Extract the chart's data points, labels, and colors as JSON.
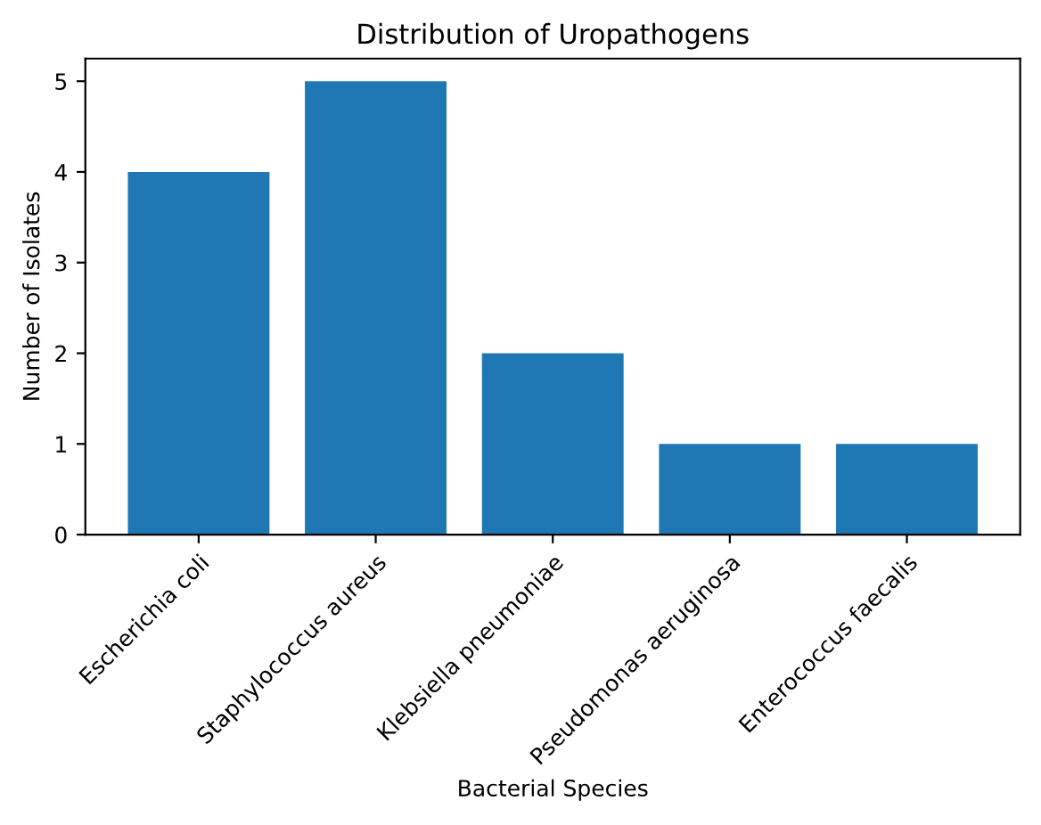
{
  "chart_data": {
    "type": "bar",
    "title": "Distribution of Uropathogens",
    "xlabel": "Bacterial Species",
    "ylabel": "Number of Isolates",
    "categories": [
      "Escherichia coli",
      "Staphylococcus aureus",
      "Klebsiella pneumoniae",
      "Pseudomonas aeruginosa",
      "Enterococcus faecalis"
    ],
    "values": [
      4,
      5,
      2,
      1,
      1
    ],
    "color": "#1f77b4",
    "ylim": [
      0,
      5.25
    ],
    "yticks": [
      0,
      1,
      2,
      3,
      4,
      5
    ],
    "grid": false
  }
}
